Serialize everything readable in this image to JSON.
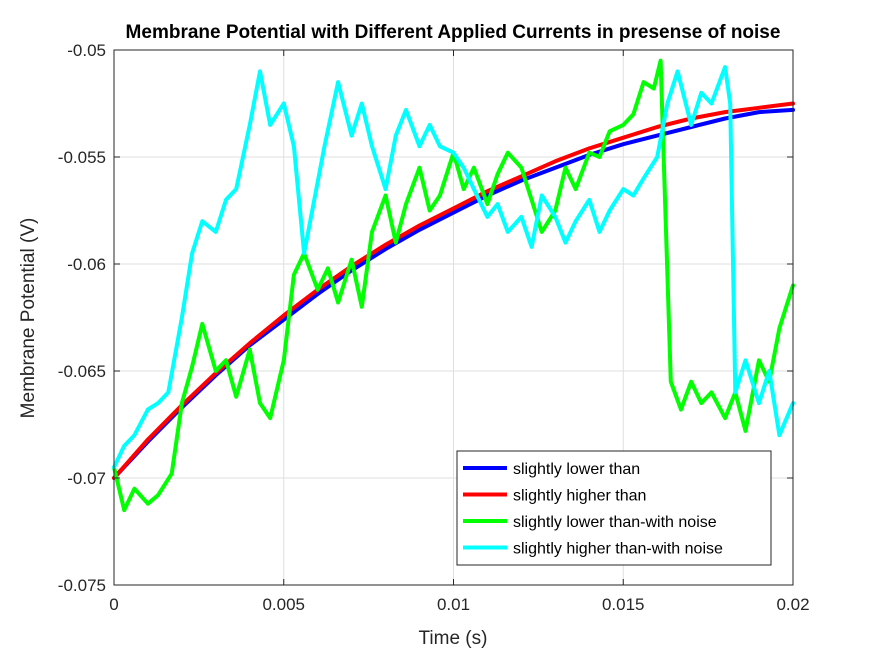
{
  "chart_data": {
    "type": "line",
    "title": "Membrane Potential with Different Applied Currents in presense of noise",
    "xlabel": "Time (s)",
    "ylabel": "Membrane Potential (V)",
    "xlim": [
      0,
      0.02
    ],
    "ylim": [
      -0.075,
      -0.05
    ],
    "xticks": [
      0,
      0.005,
      0.01,
      0.015,
      0.02
    ],
    "xtick_labels": [
      "0",
      "0.005",
      "0.01",
      "0.015",
      "0.02"
    ],
    "yticks": [
      -0.075,
      -0.07,
      -0.065,
      -0.06,
      -0.055,
      -0.05
    ],
    "ytick_labels": [
      "-0.075",
      "-0.07",
      "-0.065",
      "-0.06",
      "-0.055",
      "-0.05"
    ],
    "grid": true,
    "legend_position": "bottom-right",
    "series": [
      {
        "name": "slightly lower than",
        "color": "#0000ff",
        "x": [
          0,
          0.001,
          0.002,
          0.003,
          0.004,
          0.005,
          0.006,
          0.007,
          0.008,
          0.009,
          0.01,
          0.011,
          0.012,
          0.013,
          0.014,
          0.015,
          0.016,
          0.017,
          0.018,
          0.019,
          0.02
        ],
        "y": [
          -0.07,
          -0.0683,
          -0.0667,
          -0.0652,
          -0.0638,
          -0.0626,
          -0.0614,
          -0.0603,
          -0.0593,
          -0.0584,
          -0.0576,
          -0.0568,
          -0.0561,
          -0.0555,
          -0.0549,
          -0.0544,
          -0.054,
          -0.0536,
          -0.0532,
          -0.0529,
          -0.0528
        ]
      },
      {
        "name": "slightly higher than",
        "color": "#ff0000",
        "x": [
          0,
          0.001,
          0.002,
          0.003,
          0.004,
          0.005,
          0.006,
          0.007,
          0.008,
          0.009,
          0.01,
          0.011,
          0.012,
          0.013,
          0.014,
          0.015,
          0.016,
          0.017,
          0.018,
          0.019,
          0.02
        ],
        "y": [
          -0.07,
          -0.0682,
          -0.0666,
          -0.0651,
          -0.0637,
          -0.0624,
          -0.0612,
          -0.0601,
          -0.0591,
          -0.0582,
          -0.0574,
          -0.0566,
          -0.0559,
          -0.0552,
          -0.0546,
          -0.0541,
          -0.0536,
          -0.0532,
          -0.0529,
          -0.0527,
          -0.0525
        ]
      },
      {
        "name": "slightly lower than-with noise",
        "color": "#00ff00",
        "x": [
          0,
          0.0003,
          0.0006,
          0.001,
          0.0013,
          0.0017,
          0.002,
          0.0023,
          0.0026,
          0.003,
          0.0033,
          0.0036,
          0.004,
          0.0043,
          0.0046,
          0.005,
          0.0053,
          0.0056,
          0.006,
          0.0063,
          0.0066,
          0.007,
          0.0073,
          0.0076,
          0.008,
          0.0083,
          0.0086,
          0.009,
          0.0093,
          0.0096,
          0.01,
          0.0103,
          0.0106,
          0.011,
          0.0113,
          0.0116,
          0.012,
          0.0123,
          0.0126,
          0.013,
          0.0133,
          0.0136,
          0.014,
          0.0143,
          0.0146,
          0.015,
          0.0153,
          0.0156,
          0.0159,
          0.0161,
          0.0164,
          0.0167,
          0.017,
          0.0173,
          0.0176,
          0.018,
          0.0183,
          0.0186,
          0.019,
          0.0193,
          0.0196,
          0.02
        ],
        "y": [
          -0.0695,
          -0.0715,
          -0.0705,
          -0.0712,
          -0.0708,
          -0.0698,
          -0.0665,
          -0.0648,
          -0.0628,
          -0.065,
          -0.0645,
          -0.0662,
          -0.064,
          -0.0665,
          -0.0672,
          -0.0645,
          -0.0605,
          -0.0595,
          -0.0612,
          -0.0602,
          -0.0618,
          -0.0598,
          -0.062,
          -0.0585,
          -0.0568,
          -0.059,
          -0.0572,
          -0.0555,
          -0.0575,
          -0.0568,
          -0.0548,
          -0.0565,
          -0.0555,
          -0.0572,
          -0.0558,
          -0.0548,
          -0.0555,
          -0.057,
          -0.0585,
          -0.0575,
          -0.0555,
          -0.0565,
          -0.0548,
          -0.055,
          -0.0538,
          -0.0535,
          -0.053,
          -0.0515,
          -0.0518,
          -0.0505,
          -0.0655,
          -0.0668,
          -0.0655,
          -0.0665,
          -0.066,
          -0.0672,
          -0.066,
          -0.0678,
          -0.0645,
          -0.0655,
          -0.063,
          -0.061
        ]
      },
      {
        "name": "slightly higher than-with noise",
        "color": "#00ffff",
        "x": [
          0,
          0.0003,
          0.0006,
          0.001,
          0.0013,
          0.0016,
          0.002,
          0.0023,
          0.0026,
          0.003,
          0.0033,
          0.0036,
          0.004,
          0.0043,
          0.0046,
          0.005,
          0.0053,
          0.0056,
          0.0059,
          0.0062,
          0.0066,
          0.007,
          0.0073,
          0.0076,
          0.008,
          0.0083,
          0.0086,
          0.009,
          0.0093,
          0.0096,
          0.01,
          0.0103,
          0.0106,
          0.011,
          0.0113,
          0.0116,
          0.012,
          0.0123,
          0.0126,
          0.013,
          0.0133,
          0.0136,
          0.014,
          0.0143,
          0.0146,
          0.015,
          0.0153,
          0.0156,
          0.016,
          0.0163,
          0.0166,
          0.017,
          0.0173,
          0.0176,
          0.018,
          0.01815,
          0.0183,
          0.0186,
          0.019,
          0.0193,
          0.0196,
          0.02
        ],
        "y": [
          -0.0695,
          -0.0685,
          -0.068,
          -0.0668,
          -0.0665,
          -0.066,
          -0.0625,
          -0.0595,
          -0.058,
          -0.0585,
          -0.057,
          -0.0565,
          -0.0535,
          -0.051,
          -0.0535,
          -0.0525,
          -0.0545,
          -0.0595,
          -0.057,
          -0.0545,
          -0.0515,
          -0.054,
          -0.0525,
          -0.0545,
          -0.0565,
          -0.054,
          -0.0528,
          -0.0545,
          -0.0535,
          -0.0545,
          -0.0548,
          -0.0555,
          -0.0565,
          -0.0578,
          -0.0572,
          -0.0585,
          -0.0578,
          -0.0592,
          -0.0568,
          -0.0578,
          -0.059,
          -0.058,
          -0.057,
          -0.0585,
          -0.0575,
          -0.0565,
          -0.0568,
          -0.056,
          -0.055,
          -0.0525,
          -0.051,
          -0.0535,
          -0.052,
          -0.0525,
          -0.0508,
          -0.0525,
          -0.066,
          -0.0645,
          -0.0665,
          -0.065,
          -0.068,
          -0.0665
        ]
      }
    ]
  }
}
